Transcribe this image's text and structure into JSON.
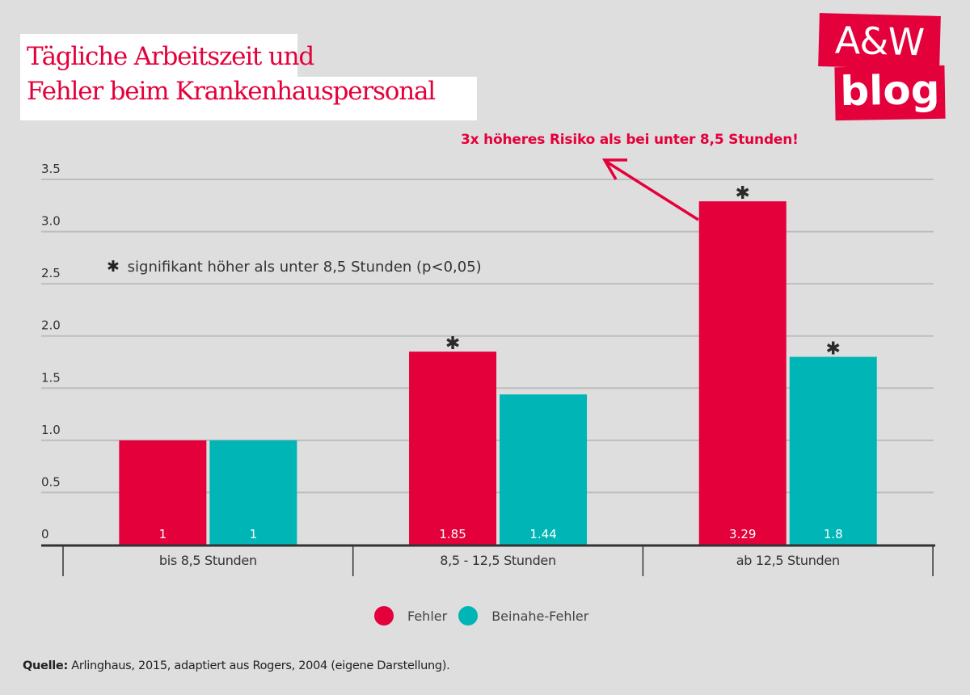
{
  "header": {
    "title_line1": "Tägliche Arbeitszeit und",
    "title_line2": "Fehler beim Krankenhauspersonal"
  },
  "logo": {
    "line1": "A&W",
    "line2": "blog"
  },
  "colors": {
    "accent": "#e4003a",
    "teal": "#00b5b5",
    "background": "#dedede",
    "grid": "#bdbdbd",
    "axis": "#333333"
  },
  "annotation": {
    "text": "3x höheres Risiko als bei unter 8,5 Stunden!"
  },
  "note": {
    "symbol": "✱",
    "text": "signifikant höher als unter 8,5 Stunden (p<0,05)"
  },
  "legend": {
    "items": [
      {
        "label": "Fehler",
        "color": "#e4003a"
      },
      {
        "label": "Beinahe-Fehler",
        "color": "#00b5b5"
      }
    ]
  },
  "source": {
    "label": "Quelle:",
    "text": " Arlinghaus, 2015, adaptiert aus Rogers, 2004 (eigene Darstellung)."
  },
  "chart_data": {
    "type": "bar",
    "title": "Tägliche Arbeitszeit und Fehler beim Krankenhauspersonal",
    "xlabel": "",
    "ylabel": "",
    "categories": [
      "bis 8,5 Stunden",
      "8,5 - 12,5 Stunden",
      "ab 12,5 Stunden"
    ],
    "series": [
      {
        "name": "Fehler",
        "color": "#e4003a",
        "values": [
          1,
          1.85,
          3.29
        ],
        "labels": [
          "1",
          "1.85",
          "3.29"
        ],
        "significant": [
          false,
          true,
          true
        ]
      },
      {
        "name": "Beinahe-Fehler",
        "color": "#00b5b5",
        "values": [
          1,
          1.44,
          1.8
        ],
        "labels": [
          "1",
          "1.44",
          "1.8"
        ],
        "significant": [
          false,
          false,
          true
        ]
      }
    ],
    "ylim": [
      0,
      3.5
    ],
    "yticks": [
      0,
      0.5,
      1.0,
      1.5,
      2.0,
      2.5,
      3.0,
      3.5
    ],
    "ytick_labels": [
      "0",
      "0.5",
      "1.0",
      "1.5",
      "2.0",
      "2.5",
      "3.0",
      "3.5"
    ],
    "grid": true,
    "legend_position": "bottom-center",
    "significance_marker": "✱"
  }
}
